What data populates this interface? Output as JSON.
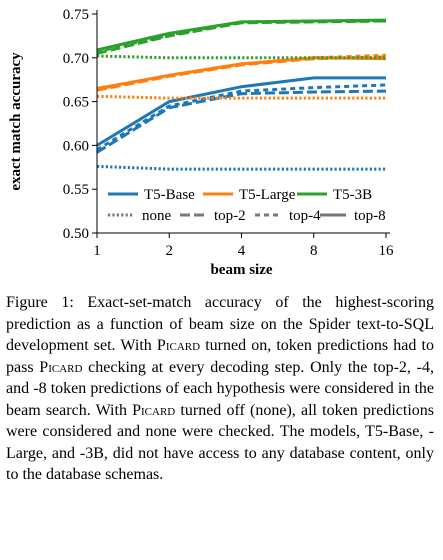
{
  "chart_data": {
    "type": "line",
    "xlabel": "beam size",
    "ylabel": "exact match accuracy",
    "x": [
      1,
      2,
      4,
      8,
      16
    ],
    "x_tick_labels": [
      "1",
      "2",
      "4",
      "8",
      "16"
    ],
    "x_scale": "log2",
    "ylim": [
      0.5,
      0.75
    ],
    "y_ticks": [
      0.5,
      0.55,
      0.6,
      0.65,
      0.7,
      0.75
    ],
    "y_tick_labels": [
      "0.50",
      "0.55",
      "0.60",
      "0.65",
      "0.70",
      "0.75"
    ],
    "grid": false,
    "legend": {
      "placement": "bottom-right",
      "models": [
        {
          "key": "base",
          "label": "T5-Base",
          "color": "#1f77b4"
        },
        {
          "key": "large",
          "label": "T5-Large",
          "color": "#ff7f0e"
        },
        {
          "key": "3b",
          "label": "T5-3B",
          "color": "#2ca02c"
        }
      ],
      "modes": [
        {
          "key": "none",
          "label": "none",
          "style": "dotted"
        },
        {
          "key": "top2",
          "label": "top-2",
          "style": "dashed"
        },
        {
          "key": "top4",
          "label": "top-4",
          "style": "dashed-fine"
        },
        {
          "key": "top8",
          "label": "top-8",
          "style": "solid"
        }
      ]
    },
    "series": [
      {
        "model": "base",
        "mode": "none",
        "values": [
          0.576,
          0.573,
          0.573,
          0.573,
          0.573
        ]
      },
      {
        "model": "base",
        "mode": "top2",
        "values": [
          0.592,
          0.643,
          0.659,
          0.661,
          0.662
        ]
      },
      {
        "model": "base",
        "mode": "top4",
        "values": [
          0.595,
          0.645,
          0.662,
          0.666,
          0.669
        ]
      },
      {
        "model": "base",
        "mode": "top8",
        "values": [
          0.6,
          0.65,
          0.667,
          0.677,
          0.677
        ]
      },
      {
        "model": "large",
        "mode": "none",
        "values": [
          0.656,
          0.654,
          0.654,
          0.654,
          0.654
        ]
      },
      {
        "model": "large",
        "mode": "top2",
        "values": [
          0.663,
          0.679,
          0.692,
          0.699,
          0.701
        ]
      },
      {
        "model": "large",
        "mode": "top4",
        "values": [
          0.664,
          0.68,
          0.693,
          0.7,
          0.703
        ]
      },
      {
        "model": "large",
        "mode": "top8",
        "values": [
          0.665,
          0.68,
          0.693,
          0.7,
          0.699
        ]
      },
      {
        "model": "3b",
        "mode": "none",
        "values": [
          0.702,
          0.7,
          0.7,
          0.7,
          0.7
        ]
      },
      {
        "model": "3b",
        "mode": "top2",
        "values": [
          0.705,
          0.725,
          0.74,
          0.741,
          0.742
        ]
      },
      {
        "model": "3b",
        "mode": "top4",
        "values": [
          0.707,
          0.726,
          0.741,
          0.742,
          0.742
        ]
      },
      {
        "model": "3b",
        "mode": "top8",
        "values": [
          0.709,
          0.728,
          0.741,
          0.742,
          0.743
        ]
      }
    ]
  },
  "caption": {
    "label": "Figure 1:",
    "text_1": " Exact-set-match accuracy of the highest-scoring prediction as a function of beam size on the Spider text-to-SQL development set. With ",
    "picard_1": "Picard",
    "text_2": " turned on, token predictions had to pass ",
    "picard_2": "Picard",
    "text_3": " checking at every decoding step. Only the top-2, -4, and -8 token predictions of each hypothesis were considered in the beam search. With ",
    "picard_3": "Picard",
    "text_4": " turned off (none), all token predictions were considered and none were checked. The models, T5-Base, -Large, and -3B, did not have access to any database content, only to the database schemas."
  }
}
